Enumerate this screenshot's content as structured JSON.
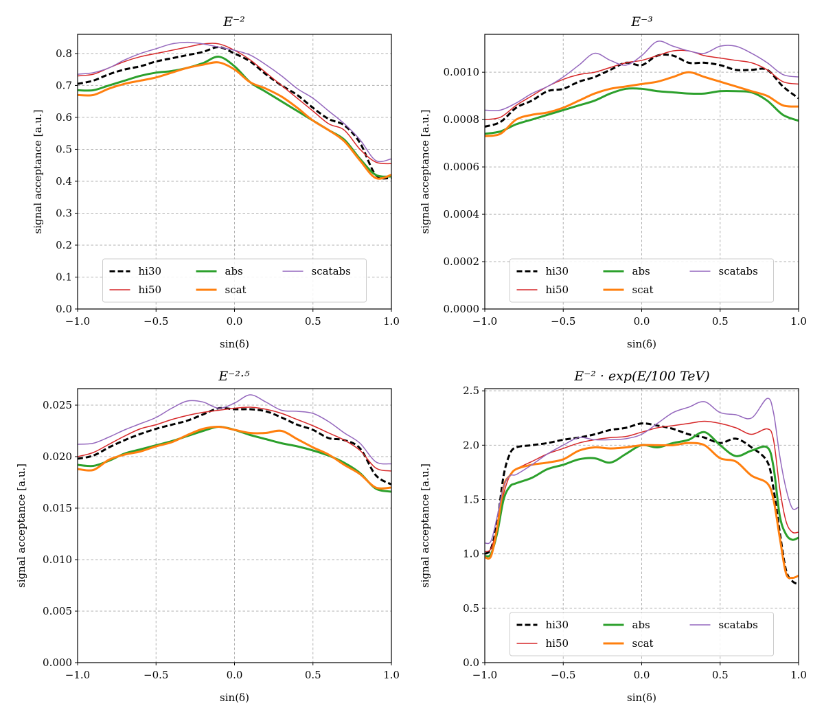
{
  "figure": {
    "xlabel": "sin(δ)",
    "ylabel": "signal acceptance [a.u.]"
  },
  "series_styles": [
    {
      "name": "hi30",
      "color": "#000000",
      "dashed": true
    },
    {
      "name": "hi50",
      "color": "#d62728",
      "dashed": false
    },
    {
      "name": "abs",
      "color": "#2ca02c",
      "dashed": false
    },
    {
      "name": "scat",
      "color": "#ff7f0e",
      "dashed": false
    },
    {
      "name": "scatabs",
      "color": "#9467bd",
      "dashed": false
    }
  ],
  "chart_data": [
    {
      "type": "line",
      "title": "E⁻²",
      "xlabel": "sin(δ)",
      "ylabel": "signal acceptance [a.u.]",
      "xlim": [
        -1.0,
        1.0
      ],
      "ylim": [
        0.0,
        0.86
      ],
      "xticks": [
        "−1.0",
        "−0.5",
        "0.0",
        "0.5",
        "1.0"
      ],
      "yticks": [
        "0.0",
        "0.1",
        "0.2",
        "0.3",
        "0.4",
        "0.5",
        "0.6",
        "0.7",
        "0.8"
      ],
      "ytick_values": [
        0.0,
        0.1,
        0.2,
        0.3,
        0.4,
        0.5,
        0.6,
        0.7,
        0.8
      ],
      "grid": true,
      "legend_position": "bottom-center",
      "x": [
        -1.0,
        -0.9,
        -0.8,
        -0.7,
        -0.6,
        -0.5,
        -0.4,
        -0.3,
        -0.2,
        -0.1,
        0.0,
        0.1,
        0.2,
        0.3,
        0.4,
        0.5,
        0.6,
        0.7,
        0.8,
        0.9,
        1.0
      ],
      "series": [
        {
          "name": "hi30",
          "values": [
            0.705,
            0.715,
            0.735,
            0.75,
            0.76,
            0.775,
            0.785,
            0.795,
            0.805,
            0.82,
            0.8,
            0.775,
            0.735,
            0.7,
            0.67,
            0.63,
            0.595,
            0.575,
            0.52,
            0.42,
            0.41
          ]
        },
        {
          "name": "hi50",
          "values": [
            0.73,
            0.735,
            0.755,
            0.775,
            0.79,
            0.8,
            0.81,
            0.82,
            0.83,
            0.83,
            0.81,
            0.78,
            0.74,
            0.7,
            0.66,
            0.62,
            0.58,
            0.56,
            0.5,
            0.46,
            0.455
          ]
        },
        {
          "name": "abs",
          "values": [
            0.685,
            0.685,
            0.7,
            0.715,
            0.73,
            0.74,
            0.745,
            0.755,
            0.77,
            0.79,
            0.76,
            0.71,
            0.68,
            0.65,
            0.62,
            0.59,
            0.56,
            0.53,
            0.47,
            0.42,
            0.415
          ]
        },
        {
          "name": "scat",
          "values": [
            0.67,
            0.67,
            0.69,
            0.705,
            0.715,
            0.725,
            0.74,
            0.755,
            0.765,
            0.772,
            0.75,
            0.71,
            0.69,
            0.665,
            0.63,
            0.59,
            0.56,
            0.525,
            0.465,
            0.41,
            0.42
          ]
        },
        {
          "name": "scatabs",
          "values": [
            0.735,
            0.74,
            0.755,
            0.78,
            0.8,
            0.815,
            0.83,
            0.835,
            0.83,
            0.82,
            0.81,
            0.795,
            0.765,
            0.73,
            0.69,
            0.66,
            0.62,
            0.58,
            0.53,
            0.465,
            0.47
          ]
        }
      ]
    },
    {
      "type": "line",
      "title": "E⁻³",
      "xlabel": "sin(δ)",
      "ylabel": "signal acceptance [a.u.]",
      "xlim": [
        -1.0,
        1.0
      ],
      "ylim": [
        0.0,
        0.00116
      ],
      "xticks": [
        "−1.0",
        "−0.5",
        "0.0",
        "0.5",
        "1.0"
      ],
      "yticks": [
        "0.0000",
        "0.0002",
        "0.0004",
        "0.0006",
        "0.0008",
        "0.0010"
      ],
      "ytick_values": [
        0.0,
        0.0002,
        0.0004,
        0.0006,
        0.0008,
        0.001
      ],
      "grid": true,
      "legend_position": "bottom-center",
      "x": [
        -1.0,
        -0.9,
        -0.8,
        -0.7,
        -0.6,
        -0.5,
        -0.4,
        -0.3,
        -0.2,
        -0.1,
        0.0,
        0.1,
        0.2,
        0.3,
        0.4,
        0.5,
        0.6,
        0.7,
        0.8,
        0.9,
        1.0
      ],
      "series": [
        {
          "name": "hi30",
          "values": [
            0.00077,
            0.00079,
            0.00085,
            0.00088,
            0.00092,
            0.00093,
            0.00096,
            0.00098,
            0.00101,
            0.00104,
            0.00103,
            0.00107,
            0.00107,
            0.00104,
            0.00104,
            0.00103,
            0.00101,
            0.00101,
            0.00101,
            0.00094,
            0.00089
          ]
        },
        {
          "name": "hi50",
          "values": [
            0.0008,
            0.00081,
            0.00086,
            0.0009,
            0.00094,
            0.00097,
            0.00099,
            0.001,
            0.00102,
            0.00104,
            0.00105,
            0.00107,
            0.00109,
            0.00109,
            0.00107,
            0.00106,
            0.00105,
            0.00104,
            0.00101,
            0.00096,
            0.00095
          ]
        },
        {
          "name": "abs",
          "values": [
            0.00074,
            0.00075,
            0.00078,
            0.0008,
            0.00082,
            0.00084,
            0.00086,
            0.00088,
            0.00091,
            0.00093,
            0.00093,
            0.00092,
            0.000915,
            0.00091,
            0.00091,
            0.00092,
            0.00092,
            0.000915,
            0.00088,
            0.00082,
            0.000795
          ]
        },
        {
          "name": "scat",
          "values": [
            0.00073,
            0.00074,
            0.0008,
            0.00082,
            0.00083,
            0.00085,
            0.00088,
            0.00091,
            0.00093,
            0.00094,
            0.00095,
            0.00096,
            0.00098,
            0.001,
            0.00098,
            0.00096,
            0.00094,
            0.00092,
            0.0009,
            0.00086,
            0.000855
          ]
        },
        {
          "name": "scatabs",
          "values": [
            0.00084,
            0.00084,
            0.00087,
            0.00091,
            0.00094,
            0.00098,
            0.00103,
            0.00108,
            0.00105,
            0.00103,
            0.00107,
            0.00113,
            0.00111,
            0.00109,
            0.00108,
            0.00111,
            0.00111,
            0.00108,
            0.00104,
            0.00099,
            0.00098
          ]
        }
      ]
    },
    {
      "type": "line",
      "title": "E⁻²·⁵",
      "xlabel": "sin(δ)",
      "ylabel": "signal acceptance [a.u.]",
      "xlim": [
        -1.0,
        1.0
      ],
      "ylim": [
        0.0,
        0.0266
      ],
      "xticks": [
        "−1.0",
        "−0.5",
        "0.0",
        "0.5",
        "1.0"
      ],
      "yticks": [
        "0.000",
        "0.005",
        "0.010",
        "0.015",
        "0.020",
        "0.025"
      ],
      "ytick_values": [
        0.0,
        0.005,
        0.01,
        0.015,
        0.02,
        0.025
      ],
      "grid": true,
      "legend_position": "none",
      "x": [
        -1.0,
        -0.9,
        -0.8,
        -0.7,
        -0.6,
        -0.5,
        -0.4,
        -0.3,
        -0.2,
        -0.1,
        0.0,
        0.1,
        0.2,
        0.3,
        0.4,
        0.5,
        0.6,
        0.7,
        0.8,
        0.9,
        1.0
      ],
      "series": [
        {
          "name": "hi30",
          "values": [
            0.0198,
            0.0201,
            0.0209,
            0.0216,
            0.0222,
            0.0227,
            0.0231,
            0.0235,
            0.0241,
            0.0247,
            0.0246,
            0.0246,
            0.0244,
            0.0238,
            0.0231,
            0.0226,
            0.0218,
            0.0216,
            0.0208,
            0.0182,
            0.0173
          ]
        },
        {
          "name": "hi50",
          "values": [
            0.02,
            0.0204,
            0.0212,
            0.022,
            0.0227,
            0.0231,
            0.0236,
            0.024,
            0.0243,
            0.0245,
            0.0247,
            0.0248,
            0.0246,
            0.0242,
            0.0236,
            0.023,
            0.0223,
            0.0216,
            0.0206,
            0.0189,
            0.0186
          ]
        },
        {
          "name": "abs",
          "values": [
            0.0192,
            0.0191,
            0.0196,
            0.0203,
            0.0207,
            0.0211,
            0.0215,
            0.022,
            0.0225,
            0.0229,
            0.0226,
            0.0221,
            0.0217,
            0.0213,
            0.021,
            0.0206,
            0.0201,
            0.0194,
            0.0184,
            0.0169,
            0.0166
          ]
        },
        {
          "name": "scat",
          "values": [
            0.0188,
            0.0187,
            0.0197,
            0.0202,
            0.0205,
            0.021,
            0.0214,
            0.0221,
            0.0227,
            0.0229,
            0.0226,
            0.0223,
            0.0223,
            0.0225,
            0.0217,
            0.0209,
            0.0202,
            0.0192,
            0.0183,
            0.017,
            0.017
          ]
        },
        {
          "name": "scatabs",
          "values": [
            0.0212,
            0.0213,
            0.0219,
            0.0226,
            0.0232,
            0.0238,
            0.0247,
            0.0254,
            0.0253,
            0.0247,
            0.0252,
            0.026,
            0.0253,
            0.0245,
            0.0244,
            0.0242,
            0.0234,
            0.0223,
            0.0213,
            0.0195,
            0.0193
          ]
        }
      ]
    },
    {
      "type": "line",
      "title": "E⁻² · exp(E/100 TeV)",
      "xlabel": "sin(δ)",
      "ylabel": "signal acceptance [a.u.]",
      "xlim": [
        -1.0,
        1.0
      ],
      "ylim": [
        0.0,
        2.52
      ],
      "xticks": [
        "−1.0",
        "−0.5",
        "0.0",
        "0.5",
        "1.0"
      ],
      "yticks": [
        "0.0",
        "0.5",
        "1.0",
        "1.5",
        "2.0",
        "2.5"
      ],
      "ytick_values": [
        0.0,
        0.5,
        1.0,
        1.5,
        2.0,
        2.5
      ],
      "grid": true,
      "legend_position": "bottom-center",
      "x": [
        -1.0,
        -0.96,
        -0.92,
        -0.88,
        -0.84,
        -0.8,
        -0.7,
        -0.6,
        -0.5,
        -0.4,
        -0.3,
        -0.2,
        -0.1,
        0.0,
        0.1,
        0.2,
        0.3,
        0.4,
        0.5,
        0.6,
        0.7,
        0.8,
        0.84,
        0.88,
        0.92,
        0.96,
        1.0
      ],
      "series": [
        {
          "name": "hi30",
          "values": [
            1.0,
            1.05,
            1.3,
            1.72,
            1.92,
            1.98,
            2.0,
            2.02,
            2.05,
            2.07,
            2.1,
            2.14,
            2.16,
            2.2,
            2.18,
            2.15,
            2.1,
            2.07,
            2.02,
            2.06,
            1.98,
            1.85,
            1.6,
            1.2,
            0.85,
            0.75,
            0.72
          ]
        },
        {
          "name": "hi50",
          "values": [
            1.02,
            1.05,
            1.25,
            1.55,
            1.72,
            1.78,
            1.85,
            1.92,
            1.97,
            2.02,
            2.05,
            2.07,
            2.08,
            2.12,
            2.16,
            2.18,
            2.2,
            2.22,
            2.2,
            2.16,
            2.1,
            2.15,
            2.05,
            1.6,
            1.3,
            1.2,
            1.2
          ]
        },
        {
          "name": "abs",
          "values": [
            0.98,
            1.0,
            1.2,
            1.5,
            1.62,
            1.65,
            1.7,
            1.78,
            1.82,
            1.87,
            1.88,
            1.84,
            1.92,
            2.0,
            1.98,
            2.02,
            2.05,
            2.12,
            2.0,
            1.9,
            1.95,
            1.98,
            1.8,
            1.35,
            1.18,
            1.13,
            1.15
          ]
        },
        {
          "name": "scat",
          "values": [
            0.97,
            0.98,
            1.25,
            1.62,
            1.72,
            1.78,
            1.82,
            1.84,
            1.87,
            1.95,
            1.98,
            1.97,
            1.98,
            2.0,
            2.0,
            2.0,
            2.02,
            2.0,
            1.88,
            1.85,
            1.72,
            1.65,
            1.5,
            1.15,
            0.82,
            0.78,
            0.8
          ]
        },
        {
          "name": "scatabs",
          "values": [
            1.1,
            1.12,
            1.35,
            1.62,
            1.72,
            1.73,
            1.82,
            1.92,
            2.0,
            2.07,
            2.05,
            2.05,
            2.06,
            2.1,
            2.2,
            2.3,
            2.35,
            2.4,
            2.3,
            2.28,
            2.25,
            2.43,
            2.3,
            1.9,
            1.6,
            1.42,
            1.43
          ]
        }
      ]
    }
  ]
}
